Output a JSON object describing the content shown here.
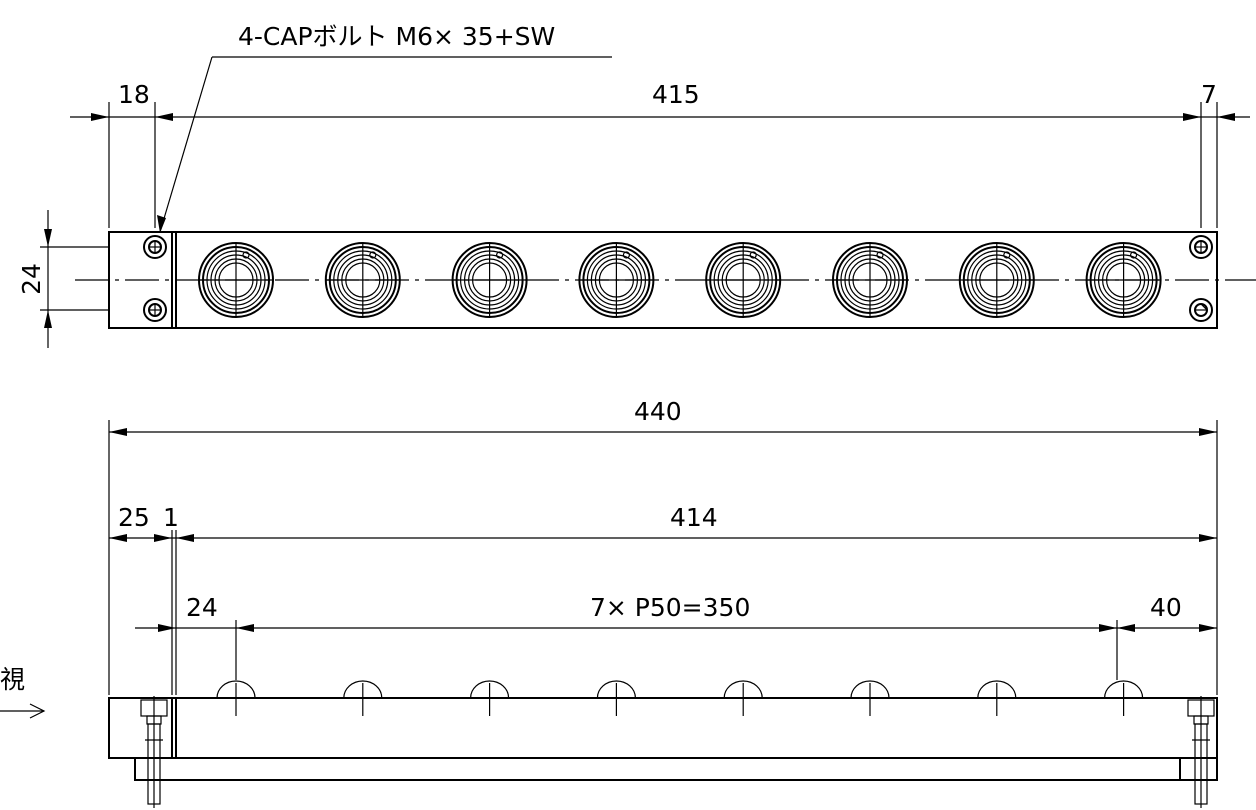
{
  "callout": {
    "text": "4-CAPボルト M6× 35+SW"
  },
  "top_view": {
    "dim_left": "18",
    "dim_mid": "415",
    "dim_right": "7",
    "dim_height": "24",
    "ports": 8
  },
  "front_view": {
    "dim_total": "440",
    "dim_left_a": "25",
    "dim_left_b": "1",
    "dim_body": "414",
    "dim_first": "24",
    "dim_pitch": "7× P50=350",
    "dim_last": "40",
    "view_label": "視",
    "ports": 8
  }
}
